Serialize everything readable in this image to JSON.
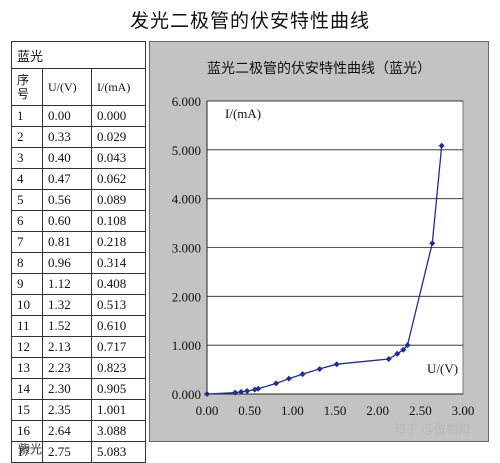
{
  "page": {
    "title": "发光二极管的伏安特性曲线",
    "watermark": "知乎 @做相知",
    "cut_text": "紫光"
  },
  "table": {
    "group_label": "蓝光",
    "headers": [
      "序号",
      "U/(V)",
      "I/(mA)"
    ],
    "rows": [
      [
        "1",
        "0.00",
        "0.000"
      ],
      [
        "2",
        "0.33",
        "0.029"
      ],
      [
        "3",
        "0.40",
        "0.043"
      ],
      [
        "4",
        "0.47",
        "0.062"
      ],
      [
        "5",
        "0.56",
        "0.089"
      ],
      [
        "6",
        "0.60",
        "0.108"
      ],
      [
        "7",
        "0.81",
        "0.218"
      ],
      [
        "8",
        "0.96",
        "0.314"
      ],
      [
        "9",
        "1.12",
        "0.408"
      ],
      [
        "10",
        "1.32",
        "0.513"
      ],
      [
        "11",
        "1.52",
        "0.610"
      ],
      [
        "12",
        "2.13",
        "0.717"
      ],
      [
        "13",
        "2.23",
        "0.823"
      ],
      [
        "14",
        "2.30",
        "0.905"
      ],
      [
        "15",
        "2.35",
        "1.001"
      ],
      [
        "16",
        "2.64",
        "3.088"
      ],
      [
        "17",
        "2.75",
        "5.083"
      ]
    ]
  },
  "chart_data": {
    "type": "scatter",
    "title": "蓝光二极管的伏安特性曲线（蓝光）",
    "xlabel": "U/(V)",
    "ylabel": "I/(mA)",
    "xlim": [
      0,
      3
    ],
    "ylim": [
      0,
      6
    ],
    "xticks": [
      "0.00",
      "0.50",
      "1.00",
      "1.50",
      "2.00",
      "2.50",
      "3.00"
    ],
    "yticks": [
      "0.000",
      "1.000",
      "2.000",
      "3.000",
      "4.000",
      "5.000",
      "6.000"
    ],
    "grid": true,
    "series": [
      {
        "color": "#1f2f8f",
        "x": [
          0.0,
          0.33,
          0.4,
          0.47,
          0.56,
          0.6,
          0.81,
          0.96,
          1.12,
          1.32,
          1.52,
          2.13,
          2.23,
          2.3,
          2.35,
          2.64,
          2.75
        ],
        "y": [
          0.0,
          0.029,
          0.043,
          0.062,
          0.089,
          0.108,
          0.218,
          0.314,
          0.408,
          0.513,
          0.61,
          0.717,
          0.823,
          0.905,
          1.001,
          3.088,
          5.083
        ]
      }
    ]
  }
}
